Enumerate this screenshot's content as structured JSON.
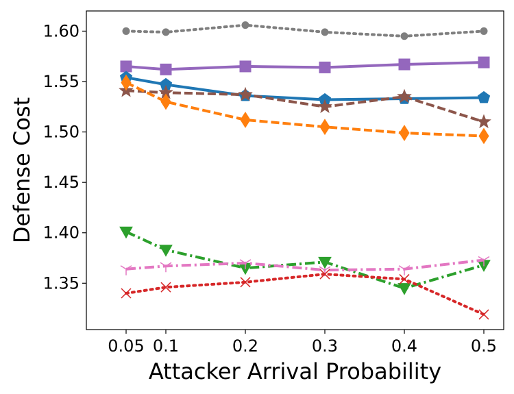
{
  "chart_data": {
    "type": "line",
    "xlabel": "Attacker Arrival Probability",
    "ylabel": "Defense Cost",
    "x": [
      0.05,
      0.1,
      0.2,
      0.3,
      0.4,
      0.5
    ],
    "x_tick_labels": [
      "0.05",
      "0.1",
      "0.2",
      "0.3",
      "0.4",
      "0.5"
    ],
    "xlim": [
      0.0,
      0.525
    ],
    "ylim": [
      1.304,
      1.62
    ],
    "y_ticks": [
      1.35,
      1.4,
      1.45,
      1.5,
      1.55,
      1.6
    ],
    "y_tick_labels": [
      "1.35",
      "1.40",
      "1.45",
      "1.50",
      "1.55",
      "1.60"
    ],
    "grid": false,
    "legend": "none",
    "series": [
      {
        "color": "#7f7f7f",
        "marker": "circle",
        "dash": "dotted",
        "values": [
          1.6,
          1.599,
          1.606,
          1.599,
          1.595,
          1.6
        ]
      },
      {
        "color": "#9467bd",
        "marker": "square",
        "dash": "solid",
        "values": [
          1.565,
          1.562,
          1.565,
          1.564,
          1.567,
          1.569
        ]
      },
      {
        "color": "#1f77b4",
        "marker": "pentagon",
        "dash": "solid",
        "values": [
          1.554,
          1.547,
          1.536,
          1.532,
          1.533,
          1.534
        ]
      },
      {
        "color": "#8c564b",
        "marker": "star",
        "dash": "dashed",
        "values": [
          1.541,
          1.539,
          1.537,
          1.525,
          1.535,
          1.51
        ]
      },
      {
        "color": "#ff7f0e",
        "marker": "diamond",
        "dash": "dashed",
        "values": [
          1.549,
          1.53,
          1.512,
          1.505,
          1.499,
          1.496
        ]
      },
      {
        "color": "#2ca02c",
        "marker": "triangle-down",
        "dash": "dashdot",
        "values": [
          1.401,
          1.383,
          1.365,
          1.371,
          1.345,
          1.368
        ]
      },
      {
        "color": "#e377c2",
        "marker": "tri-down",
        "dash": "dashdot",
        "values": [
          1.364,
          1.367,
          1.37,
          1.363,
          1.364,
          1.373
        ]
      },
      {
        "color": "#d62728",
        "marker": "x",
        "dash": "dotted",
        "values": [
          1.34,
          1.346,
          1.351,
          1.359,
          1.354,
          1.319
        ]
      }
    ]
  }
}
